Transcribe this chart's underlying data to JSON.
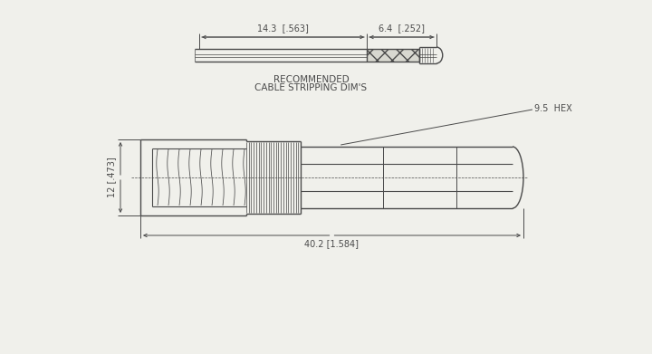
{
  "bg_color": "#f0f0eb",
  "line_color": "#4a4a4a",
  "lw": 1.0,
  "thin_lw": 0.6,
  "dim_lw": 0.7,
  "title_text1": "RECOMMENDED",
  "title_text2": "CABLE STRIPPING DIM'S",
  "dim1_label": "14.3  [.563]",
  "dim2_label": "6.4  [.252]",
  "dim3_label": "12 [.473]",
  "dim4_label": "40.2 [1.584]",
  "hex_label": "9.5  HEX",
  "font_size": 7.0
}
